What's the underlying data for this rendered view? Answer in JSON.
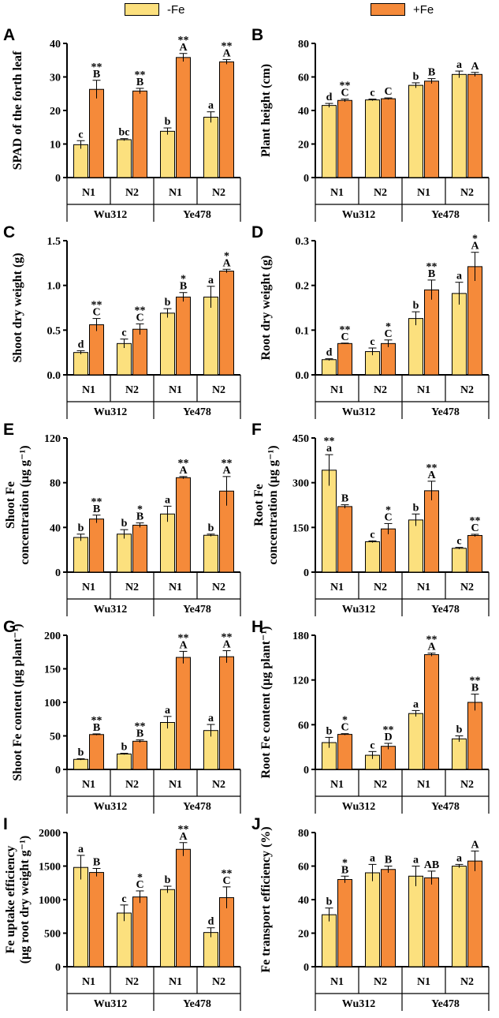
{
  "legend": {
    "items": [
      {
        "label": "-Fe",
        "color": "#FCE07E"
      },
      {
        "label": "+Fe",
        "color": "#F58A3A"
      }
    ]
  },
  "chart_data": [
    {
      "panel": "A",
      "type": "bar",
      "ylabel": "SPAD of the forth leaf",
      "ylim": [
        0,
        40
      ],
      "yticks": [
        "0",
        "10",
        "20",
        "30",
        "40"
      ],
      "categories": [
        "N1",
        "N2",
        "N1",
        "N2"
      ],
      "groups": [
        "Wu312",
        "Ye478"
      ],
      "series": [
        {
          "name": "-Fe",
          "values": [
            9.8,
            11.3,
            13.8,
            18.0
          ],
          "errors": [
            1.2,
            0.3,
            1.0,
            1.6
          ],
          "letters": [
            "c",
            "bc",
            "b",
            "a"
          ],
          "stars": [
            "",
            "",
            "",
            ""
          ]
        },
        {
          "name": "+Fe",
          "values": [
            26.3,
            25.8,
            35.8,
            34.5
          ],
          "errors": [
            2.7,
            0.8,
            1.2,
            0.7
          ],
          "letters": [
            "B",
            "B",
            "A",
            "A"
          ],
          "stars": [
            "**",
            "**",
            "**",
            "**"
          ]
        }
      ]
    },
    {
      "panel": "B",
      "type": "bar",
      "ylabel": "Plant height (cm)",
      "ylim": [
        0,
        80
      ],
      "yticks": [
        "0",
        "20",
        "40",
        "60",
        "80"
      ],
      "categories": [
        "N1",
        "N2",
        "N1",
        "N2"
      ],
      "groups": [
        "Wu312",
        "Ye478"
      ],
      "series": [
        {
          "name": "-Fe",
          "values": [
            43.0,
            46.3,
            55.0,
            61.5
          ],
          "errors": [
            1.2,
            0.5,
            1.5,
            2.0
          ],
          "letters": [
            "d",
            "c",
            "b",
            "a"
          ],
          "stars": [
            "",
            "",
            "",
            ""
          ]
        },
        {
          "name": "+Fe",
          "values": [
            46.0,
            47.0,
            57.5,
            61.5
          ],
          "errors": [
            0.8,
            0.5,
            1.5,
            1.2
          ],
          "letters": [
            "C",
            "C",
            "B",
            "A"
          ],
          "stars": [
            "**",
            "",
            "",
            ""
          ]
        }
      ]
    },
    {
      "panel": "C",
      "type": "bar",
      "ylabel": "Shoot dry weight (g)",
      "ylim": [
        0,
        1.5
      ],
      "yticks": [
        "0.0",
        "0.5",
        "1.0",
        "1.5"
      ],
      "categories": [
        "N1",
        "N2",
        "N1",
        "N2"
      ],
      "groups": [
        "Wu312",
        "Ye478"
      ],
      "series": [
        {
          "name": "-Fe",
          "values": [
            0.25,
            0.35,
            0.69,
            0.87
          ],
          "errors": [
            0.02,
            0.05,
            0.05,
            0.12
          ],
          "letters": [
            "d",
            "c",
            "b",
            "a"
          ],
          "stars": [
            "",
            "",
            "",
            ""
          ]
        },
        {
          "name": "+Fe",
          "values": [
            0.56,
            0.51,
            0.87,
            1.16
          ],
          "errors": [
            0.07,
            0.06,
            0.05,
            0.02
          ],
          "letters": [
            "C",
            "C",
            "B",
            "A"
          ],
          "stars": [
            "**",
            "**",
            "*",
            "*"
          ]
        }
      ]
    },
    {
      "panel": "D",
      "type": "bar",
      "ylabel": "Root dry weight (g)",
      "ylim": [
        0,
        0.3
      ],
      "yticks": [
        "0.0",
        "0.1",
        "0.2",
        "0.3"
      ],
      "categories": [
        "N1",
        "N2",
        "N1",
        "N2"
      ],
      "groups": [
        "Wu312",
        "Ye478"
      ],
      "series": [
        {
          "name": "-Fe",
          "values": [
            0.034,
            0.052,
            0.126,
            0.182
          ],
          "errors": [
            0.002,
            0.008,
            0.015,
            0.025
          ],
          "letters": [
            "d",
            "c",
            "b",
            "a"
          ],
          "stars": [
            "",
            "",
            "",
            ""
          ]
        },
        {
          "name": "+Fe",
          "values": [
            0.07,
            0.07,
            0.19,
            0.242
          ],
          "errors": [
            0.001,
            0.008,
            0.022,
            0.032
          ],
          "letters": [
            "C",
            "C",
            "B",
            "A"
          ],
          "stars": [
            "**",
            "*",
            "**",
            "*"
          ]
        }
      ]
    },
    {
      "panel": "E",
      "type": "bar",
      "ylabel": [
        "Shoot Fe",
        "concentration (μg g⁻¹)"
      ],
      "ylim": [
        0,
        120
      ],
      "yticks": [
        "0",
        "40",
        "80",
        "120"
      ],
      "categories": [
        "N1",
        "N2",
        "N1",
        "N2"
      ],
      "groups": [
        "Wu312",
        "Ye478"
      ],
      "series": [
        {
          "name": "-Fe",
          "values": [
            31.0,
            34.0,
            52.0,
            33.0
          ],
          "errors": [
            3.0,
            4.0,
            7.0,
            1.0
          ],
          "letters": [
            "b",
            "b",
            "a",
            "b"
          ],
          "stars": [
            "",
            "",
            "",
            ""
          ]
        },
        {
          "name": "+Fe",
          "values": [
            47.5,
            42.0,
            84.5,
            72.5
          ],
          "errors": [
            3.5,
            2.0,
            1.0,
            13.0
          ],
          "letters": [
            "B",
            "B",
            "A",
            "A"
          ],
          "stars": [
            "**",
            "*",
            "**",
            "**"
          ]
        }
      ]
    },
    {
      "panel": "F",
      "type": "bar",
      "ylabel": [
        "Root Fe",
        "concentration (μg g⁻¹)"
      ],
      "ylim": [
        0,
        450
      ],
      "yticks": [
        "0",
        "150",
        "300",
        "450"
      ],
      "categories": [
        "N1",
        "N2",
        "N1",
        "N2"
      ],
      "groups": [
        "Wu312",
        "Ye478"
      ],
      "series": [
        {
          "name": "-Fe",
          "values": [
            342,
            102,
            175,
            80
          ],
          "errors": [
            52,
            3,
            20,
            3
          ],
          "letters": [
            "a",
            "c",
            "b",
            "c"
          ],
          "stars": [
            "**",
            "",
            "",
            ""
          ]
        },
        {
          "name": "+Fe",
          "values": [
            220,
            145,
            273,
            123
          ],
          "errors": [
            6,
            18,
            32,
            4
          ],
          "letters": [
            "B",
            "C",
            "A",
            "C"
          ],
          "stars": [
            "",
            "*",
            "**",
            "**"
          ]
        }
      ]
    },
    {
      "panel": "G",
      "type": "bar",
      "ylabel": "Shoot Fe content (μg plant⁻¹)",
      "ylim": [
        0,
        200
      ],
      "yticks": [
        "0",
        "50",
        "100",
        "150",
        "200"
      ],
      "categories": [
        "N1",
        "N2",
        "N1",
        "N2"
      ],
      "groups": [
        "Wu312",
        "Ye478"
      ],
      "series": [
        {
          "name": "-Fe",
          "values": [
            15,
            23,
            70,
            58
          ],
          "errors": [
            1,
            1,
            9,
            9
          ],
          "letters": [
            "b",
            "b",
            "a",
            "a"
          ],
          "stars": [
            "",
            "",
            "",
            ""
          ]
        },
        {
          "name": "+Fe",
          "values": [
            52,
            42,
            167,
            168
          ],
          "errors": [
            1,
            2,
            9,
            9
          ],
          "letters": [
            "B",
            "B",
            "A",
            "A"
          ],
          "stars": [
            "**",
            "**",
            "**",
            "**"
          ]
        }
      ]
    },
    {
      "panel": "H",
      "type": "bar",
      "ylabel": "Root Fe content (μg plant⁻¹)",
      "ylim": [
        0,
        180
      ],
      "yticks": [
        "0",
        "60",
        "120",
        "180"
      ],
      "categories": [
        "N1",
        "N2",
        "N1",
        "N2"
      ],
      "groups": [
        "Wu312",
        "Ye478"
      ],
      "series": [
        {
          "name": "-Fe",
          "values": [
            36,
            19,
            75,
            41
          ],
          "errors": [
            7,
            5,
            4,
            4
          ],
          "letters": [
            "b",
            "c",
            "a",
            "b"
          ],
          "stars": [
            "",
            "",
            "",
            ""
          ]
        },
        {
          "name": "+Fe",
          "values": [
            47,
            31,
            154,
            90
          ],
          "errors": [
            1,
            4,
            2,
            11
          ],
          "letters": [
            "C",
            "D",
            "A",
            "B"
          ],
          "stars": [
            "*",
            "**",
            "**",
            "**"
          ]
        }
      ]
    },
    {
      "panel": "I",
      "type": "bar",
      "ylabel": [
        "Fe uptake efficiency",
        "(μg root dry weight g⁻¹)"
      ],
      "ylim": [
        0,
        2000
      ],
      "yticks": [
        "0",
        "500",
        "1000",
        "1500",
        "2000"
      ],
      "categories": [
        "N1",
        "N2",
        "N1",
        "N2"
      ],
      "groups": [
        "Wu312",
        "Ye478"
      ],
      "series": [
        {
          "name": "-Fe",
          "values": [
            1480,
            800,
            1150,
            510
          ],
          "errors": [
            180,
            120,
            50,
            70
          ],
          "letters": [
            "a",
            "c",
            "b",
            "d"
          ],
          "stars": [
            "",
            "",
            "",
            ""
          ]
        },
        {
          "name": "+Fe",
          "values": [
            1405,
            1040,
            1750,
            1030
          ],
          "errors": [
            60,
            90,
            100,
            160
          ],
          "letters": [
            "B",
            "C",
            "A",
            "C"
          ],
          "stars": [
            "",
            "*",
            "**",
            "**"
          ]
        }
      ]
    },
    {
      "panel": "J",
      "type": "bar",
      "ylabel": "Fe transport efficiency (%)",
      "ylim": [
        0,
        80
      ],
      "yticks": [
        "0",
        "20",
        "40",
        "60",
        "80"
      ],
      "categories": [
        "N1",
        "N2",
        "N1",
        "N2"
      ],
      "groups": [
        "Wu312",
        "Ye478"
      ],
      "series": [
        {
          "name": "-Fe",
          "values": [
            31,
            56,
            54,
            60
          ],
          "errors": [
            4,
            5,
            6,
            1
          ],
          "letters": [
            "b",
            "a",
            "a",
            "a"
          ],
          "stars": [
            "",
            "",
            "",
            ""
          ]
        },
        {
          "name": "+Fe",
          "values": [
            52,
            58,
            53,
            63
          ],
          "errors": [
            2,
            2,
            4,
            6
          ],
          "letters": [
            "B",
            "B",
            "AB",
            "A"
          ],
          "stars": [
            "*",
            "",
            "",
            ""
          ]
        }
      ]
    }
  ]
}
